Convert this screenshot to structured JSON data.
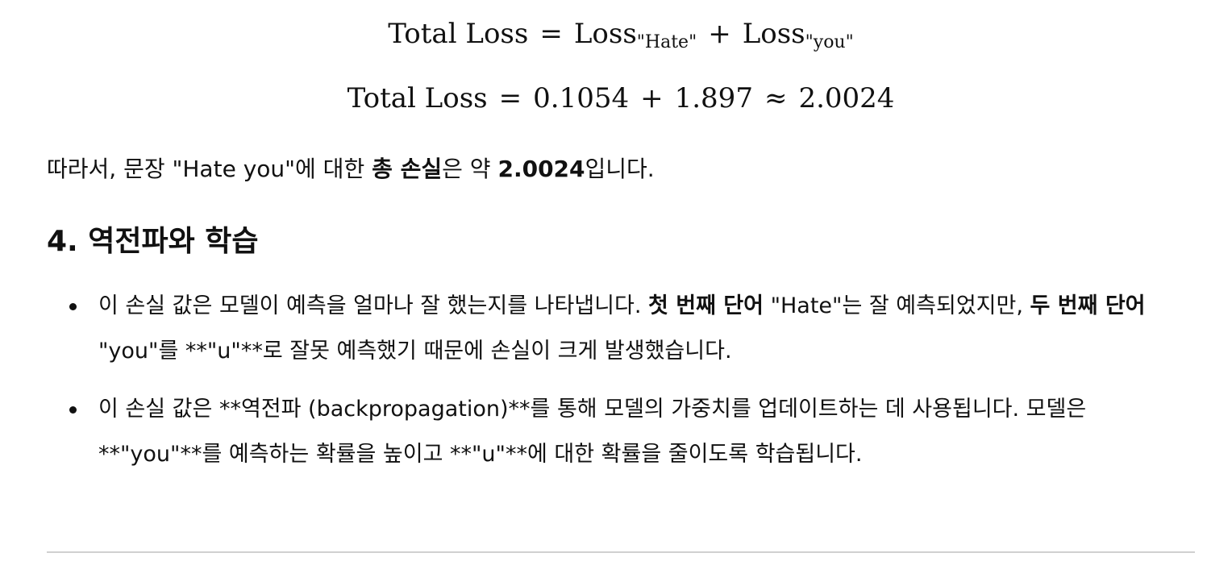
{
  "equation1": {
    "lhs": "Total Loss",
    "eq": "=",
    "term1": "Loss",
    "sub1": "\"Hate\"",
    "plus": "+",
    "term2": "Loss",
    "sub2": "\"you\""
  },
  "equation2": {
    "lhs": "Total Loss",
    "eq": "=",
    "a": "0.1054",
    "plus": "+",
    "b": "1.897",
    "approx": "≈",
    "result": "2.0024"
  },
  "summary": {
    "t1": "따라서, 문장 \"Hate you\"에 대한 ",
    "b1": "총 손실",
    "t2": "은 약 ",
    "b2": "2.0024",
    "t3": "입니다."
  },
  "section": {
    "title": "4. 역전파와 학습"
  },
  "bullets": [
    {
      "t1": "이 손실 값은 모델이 예측을 얼마나 잘 했는지를 나타냅니다. ",
      "b1": "첫 번째 단어",
      "t2": " \"Hate\"는 잘 예측되었지만, ",
      "b2": "두 번째 단어",
      "t3": " \"you\"를 **\"u\"**로 잘못 예측했기 때문에 손실이 크게 발생했습니다."
    },
    {
      "t1": "이 손실 값은 **역전파 (backpropagation)**를 통해 모델의 가중치를 업데이트하는 데 사용됩니다. 모델은 **\"you\"**를 예측하는 확률을 높이고 **\"u\"**에 대한 확률을 줄이도록 학습됩니다."
    }
  ]
}
